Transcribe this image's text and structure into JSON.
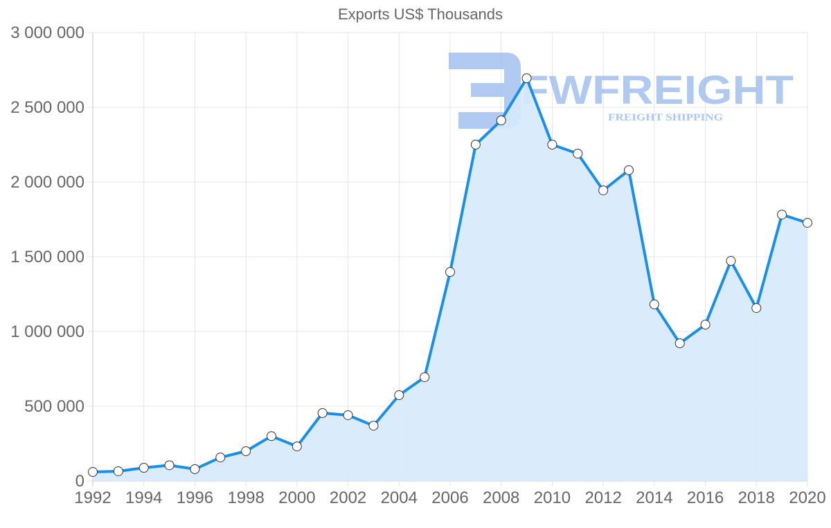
{
  "chart_data": {
    "type": "area",
    "title": "Exports US$ Thousands",
    "xlabel": "",
    "ylabel": "",
    "x": [
      1992,
      1993,
      1994,
      1995,
      1996,
      1997,
      1998,
      1999,
      2000,
      2001,
      2002,
      2003,
      2004,
      2005,
      2006,
      2007,
      2008,
      2009,
      2010,
      2011,
      2012,
      2013,
      2014,
      2015,
      2016,
      2017,
      2018,
      2019,
      2020
    ],
    "series": [
      {
        "name": "Exports US$ Thousands",
        "values": [
          60000,
          65000,
          88000,
          105000,
          79000,
          157000,
          199000,
          300000,
          231000,
          454000,
          440000,
          370000,
          574000,
          694000,
          1398000,
          2250000,
          2412000,
          2694000,
          2250000,
          2190000,
          1944000,
          2079000,
          1181000,
          921000,
          1046000,
          1472000,
          1157000,
          1782000,
          1727000
        ]
      }
    ],
    "ylim": [
      0,
      3000000
    ],
    "xlim": [
      1992,
      2020
    ],
    "y_ticks": [
      0,
      500000,
      1000000,
      1500000,
      2000000,
      2500000,
      3000000
    ],
    "y_tick_labels": [
      "0",
      "500 000",
      "1 000 000",
      "1 500 000",
      "2 000 000",
      "2 500 000",
      "3 000 000"
    ],
    "x_tick_labels": [
      "1992",
      "1994",
      "1996",
      "1998",
      "2000",
      "2002",
      "2004",
      "2006",
      "2008",
      "2010",
      "2012",
      "2014",
      "2016",
      "2018",
      "2020"
    ],
    "grid": true,
    "legend": "none",
    "colors": {
      "line": "#1a8fea",
      "fill": "#d6eafc",
      "point_fill": "#ffffff",
      "point_stroke": "#333333",
      "grid": "#e4e4e4",
      "axis": "#c8c8c8",
      "text": "#666666"
    }
  },
  "watermark": {
    "brand": "FWFREIGHT",
    "tagline": "FREIGHT SHIPPING"
  }
}
